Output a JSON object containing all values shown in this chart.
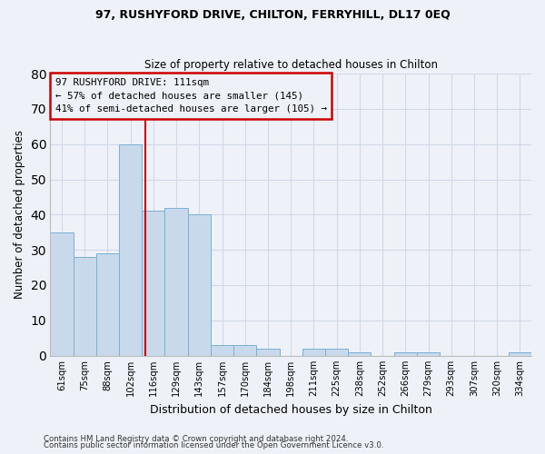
{
  "title1": "97, RUSHYFORD DRIVE, CHILTON, FERRYHILL, DL17 0EQ",
  "title2": "Size of property relative to detached houses in Chilton",
  "xlabel": "Distribution of detached houses by size in Chilton",
  "ylabel": "Number of detached properties",
  "categories": [
    "61sqm",
    "75sqm",
    "88sqm",
    "102sqm",
    "116sqm",
    "129sqm",
    "143sqm",
    "157sqm",
    "170sqm",
    "184sqm",
    "198sqm",
    "211sqm",
    "225sqm",
    "238sqm",
    "252sqm",
    "266sqm",
    "279sqm",
    "293sqm",
    "307sqm",
    "320sqm",
    "334sqm"
  ],
  "values": [
    35,
    28,
    29,
    60,
    41,
    42,
    40,
    3,
    3,
    2,
    0,
    2,
    2,
    1,
    0,
    1,
    1,
    0,
    0,
    0,
    1
  ],
  "bar_color": "#c9d9ec",
  "bar_edge_color": "#7bafd4",
  "ylim": [
    0,
    80
  ],
  "yticks": [
    0,
    10,
    20,
    30,
    40,
    50,
    60,
    70,
    80
  ],
  "annotation_text": "97 RUSHYFORD DRIVE: 111sqm\n← 57% of detached houses are smaller (145)\n41% of semi-detached houses are larger (105) →",
  "annotation_box_color": "#cc0000",
  "footer1": "Contains HM Land Registry data © Crown copyright and database right 2024.",
  "footer2": "Contains public sector information licensed under the Open Government Licence v3.0.",
  "grid_color": "#d0d8e8",
  "background_color": "#eef2f8"
}
